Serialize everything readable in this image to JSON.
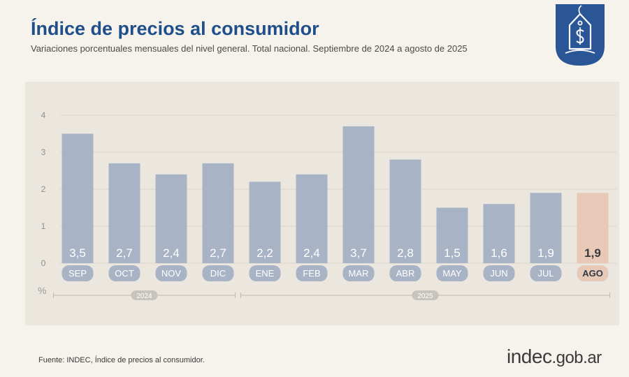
{
  "header": {
    "title": "Índice de precios al consumidor",
    "subtitle": "Variaciones porcentuales mensuales del nivel general. Total nacional. Septiembre de 2024 a agosto de 2025"
  },
  "chart_data": {
    "type": "bar",
    "categories": [
      "SEP",
      "OCT",
      "NOV",
      "DIC",
      "ENE",
      "FEB",
      "MAR",
      "ABR",
      "MAY",
      "JUN",
      "JUL",
      "AGO"
    ],
    "values": [
      3.5,
      2.7,
      2.4,
      2.7,
      2.2,
      2.4,
      3.7,
      2.8,
      1.5,
      1.6,
      1.9,
      1.9
    ],
    "value_labels": [
      "3,5",
      "2,7",
      "2,4",
      "2,7",
      "2,2",
      "2,4",
      "3,7",
      "2,8",
      "1,5",
      "1,6",
      "1,9",
      "1,9"
    ],
    "highlight_index": 11,
    "yticks": [
      "0",
      "1",
      "2",
      "3",
      "4"
    ],
    "ylim": [
      0,
      4
    ],
    "ylabel": "%",
    "grid": true,
    "year_groups": [
      {
        "label": "2024",
        "start": 0,
        "end": 3
      },
      {
        "label": "2025",
        "start": 4,
        "end": 11
      }
    ],
    "colors": {
      "bar": "#a8b3c6",
      "highlight": "#e8c8b6",
      "grid": "#d8d4cc",
      "year_pill": "#c8c4bc"
    }
  },
  "footer": {
    "source": "Fuente: INDEC, Índice de precios al consumidor.",
    "logo_brand": "indec",
    "logo_domain": ".gob.ar"
  }
}
